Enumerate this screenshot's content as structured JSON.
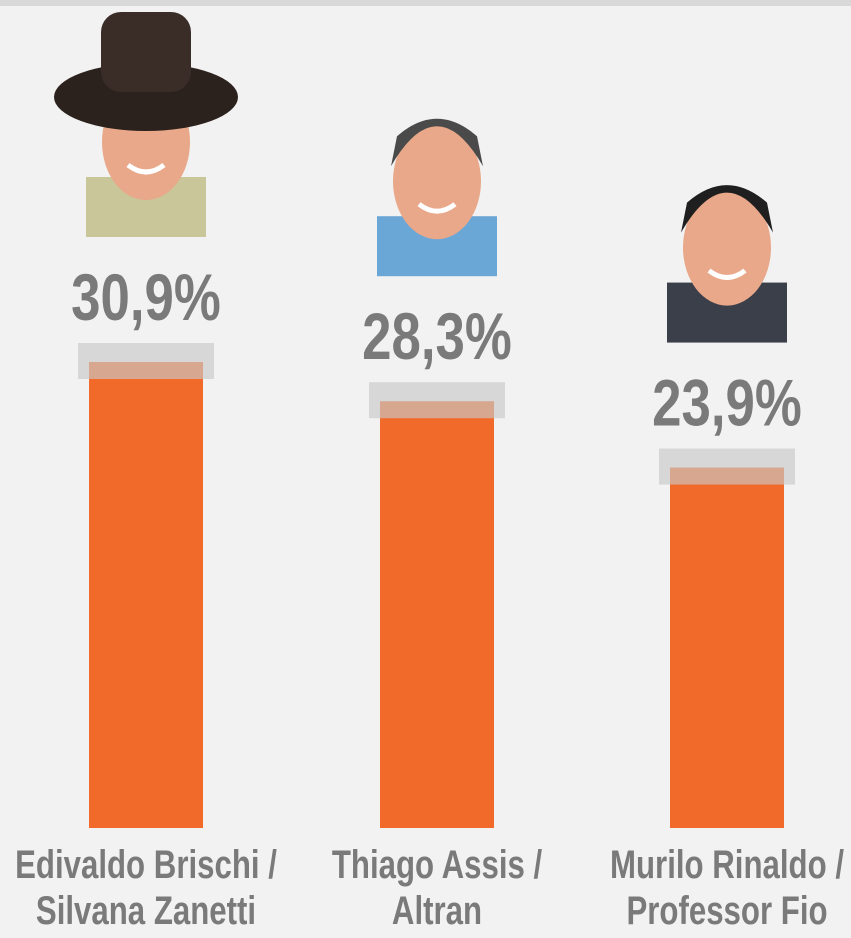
{
  "chart_data": {
    "type": "bar",
    "categories": [
      "Edivaldo Brischi /\nSilvana Zanetti",
      "Thiago Assis /\nAltran",
      "Murilo Rinaldo /\nProfessor Fio"
    ],
    "values": [
      30.9,
      28.3,
      23.9
    ],
    "value_labels": [
      "30,9%",
      "28,3%",
      "23,9%"
    ],
    "color": "#f26a2a"
  }
}
